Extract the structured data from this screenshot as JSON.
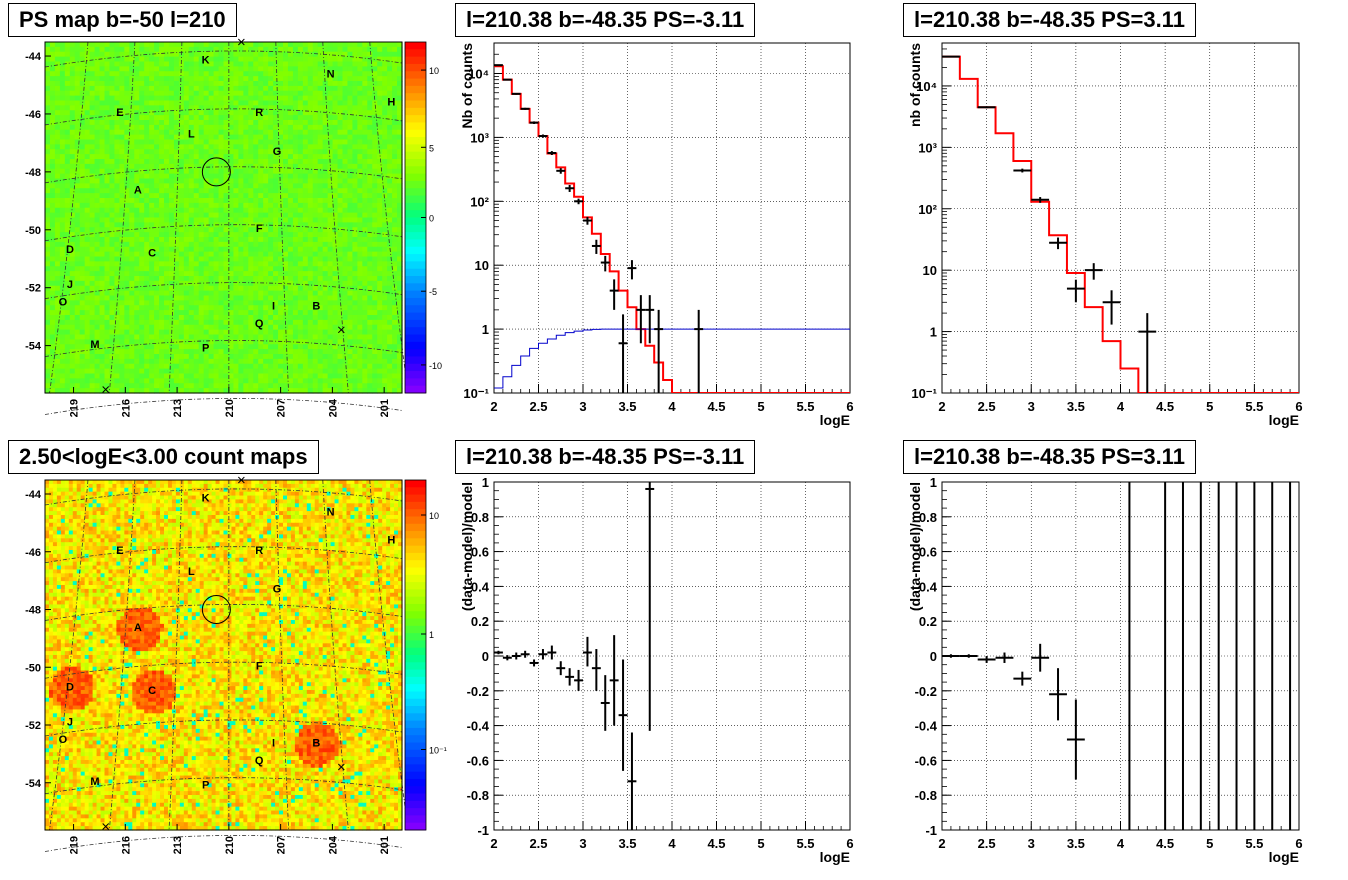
{
  "panels": {
    "map_top": {
      "title": "PS map b=-50 l=210",
      "y_ticks": [
        "-44",
        "-46",
        "-48",
        "-50",
        "-52",
        "-54"
      ],
      "x_ticks": [
        "219",
        "216",
        "213",
        "210",
        "207",
        "204",
        "201"
      ],
      "colorbar_ticks": [
        "10",
        "5",
        "0",
        "-5",
        "-10"
      ],
      "labels": [
        "K",
        "N",
        "H",
        "E",
        "R",
        "L",
        "G",
        "A",
        "F",
        "D",
        "C",
        "J",
        "O",
        "I",
        "B",
        "Q",
        "M",
        "P"
      ]
    },
    "map_bottom": {
      "title": "2.50<logE<3.00 count maps",
      "y_ticks": [
        "-44",
        "-46",
        "-48",
        "-50",
        "-52",
        "-54"
      ],
      "x_ticks": [
        "219",
        "216",
        "213",
        "210",
        "207",
        "204",
        "201"
      ],
      "colorbar_ticks": [
        "10",
        "1",
        "10⁻¹"
      ],
      "labels": [
        "K",
        "N",
        "H",
        "E",
        "R",
        "L",
        "G",
        "A",
        "F",
        "D",
        "C",
        "J",
        "O",
        "I",
        "B",
        "Q",
        "M",
        "P"
      ]
    },
    "spec_left": {
      "title": "l=210.38 b=-48.35 PS=-3.11"
    },
    "spec_right": {
      "title": "l=210.38 b=-48.35 PS=3.11"
    },
    "res_left": {
      "title": "l=210.38 b=-48.35 PS=-3.11"
    },
    "res_right": {
      "title": "l=210.38 b=-48.35 PS=3.11"
    }
  },
  "chart_data": [
    {
      "id": "spec_left",
      "type": "line",
      "xlabel": "logE",
      "ylabel": "Nb of counts",
      "xlim": [
        2,
        6
      ],
      "ylim": [
        0.1,
        30000
      ],
      "yscale": "log",
      "x_ticks": [
        "2",
        "2.5",
        "3",
        "3.5",
        "4",
        "4.5",
        "5",
        "5.5",
        "6"
      ],
      "y_ticks": [
        {
          "v": 0.1,
          "t": "10⁻¹"
        },
        {
          "v": 1,
          "t": "1"
        },
        {
          "v": 10,
          "t": "10"
        },
        {
          "v": 100,
          "t": "10²"
        },
        {
          "v": 1000,
          "t": "10³"
        },
        {
          "v": 10000,
          "t": "10⁴"
        }
      ],
      "grid": true,
      "series": [
        {
          "kind": "step",
          "color": "#ff0000",
          "edges": [
            2,
            2.1,
            2.2,
            2.3,
            2.4,
            2.5,
            2.6,
            2.7,
            2.8,
            2.9,
            3.0,
            3.1,
            3.2,
            3.3,
            3.4,
            3.5,
            3.6,
            3.7,
            3.8,
            3.9,
            4.0,
            6
          ],
          "values": [
            13000,
            8000,
            4800,
            2800,
            1700,
            1050,
            560,
            340,
            190,
            118,
            56,
            31,
            15,
            8,
            4,
            2.2,
            1.0,
            0.55,
            0.3,
            0.16,
            0.1
          ]
        },
        {
          "kind": "step",
          "color": "#0000cc",
          "edges": [
            2,
            2.1,
            2.2,
            2.3,
            2.4,
            2.5,
            2.6,
            2.7,
            2.8,
            2.9,
            3.0,
            3.1,
            3.2,
            3.3,
            3.4,
            6
          ],
          "values": [
            0.12,
            0.18,
            0.27,
            0.38,
            0.5,
            0.6,
            0.7,
            0.8,
            0.88,
            0.93,
            0.97,
            0.99,
            1.0,
            1.0,
            1.0
          ]
        },
        {
          "kind": "errors",
          "color": "#000000",
          "points": [
            {
              "x": 2.05,
              "y": 13500,
              "xe": 0.05,
              "lo": 13200,
              "hi": 13800
            },
            {
              "x": 2.15,
              "y": 8000,
              "xe": 0.05,
              "lo": 7800,
              "hi": 8200
            },
            {
              "x": 2.25,
              "y": 4800,
              "xe": 0.05,
              "lo": 4650,
              "hi": 4950
            },
            {
              "x": 2.35,
              "y": 2800,
              "xe": 0.05,
              "lo": 2700,
              "hi": 2900
            },
            {
              "x": 2.45,
              "y": 1700,
              "xe": 0.05,
              "lo": 1620,
              "hi": 1780
            },
            {
              "x": 2.55,
              "y": 1050,
              "xe": 0.05,
              "lo": 990,
              "hi": 1110
            },
            {
              "x": 2.65,
              "y": 570,
              "xe": 0.05,
              "lo": 530,
              "hi": 610
            },
            {
              "x": 2.75,
              "y": 300,
              "xe": 0.05,
              "lo": 270,
              "hi": 330
            },
            {
              "x": 2.85,
              "y": 160,
              "xe": 0.05,
              "lo": 140,
              "hi": 180
            },
            {
              "x": 2.95,
              "y": 100,
              "xe": 0.05,
              "lo": 90,
              "hi": 110
            },
            {
              "x": 3.05,
              "y": 50,
              "xe": 0.05,
              "lo": 43,
              "hi": 57
            },
            {
              "x": 3.15,
              "y": 20,
              "xe": 0.05,
              "lo": 15,
              "hi": 25
            },
            {
              "x": 3.25,
              "y": 11,
              "xe": 0.05,
              "lo": 8,
              "hi": 14
            },
            {
              "x": 3.35,
              "y": 4,
              "xe": 0.05,
              "lo": 2,
              "hi": 6
            },
            {
              "x": 3.45,
              "y": 0.6,
              "xe": 0.05,
              "lo": 0.1,
              "hi": 1.7
            },
            {
              "x": 3.55,
              "y": 9,
              "xe": 0.05,
              "lo": 6,
              "hi": 12
            },
            {
              "x": 3.65,
              "y": 2,
              "xe": 0.05,
              "lo": 0.6,
              "hi": 3.4
            },
            {
              "x": 3.75,
              "y": 2,
              "xe": 0.05,
              "lo": 0.6,
              "hi": 3.4
            },
            {
              "x": 3.85,
              "y": 1,
              "xe": 0.05,
              "lo": 0.1,
              "hi": 2
            },
            {
              "x": 4.3,
              "y": 1,
              "xe": 0.05,
              "lo": 0.1,
              "hi": 2
            }
          ]
        }
      ]
    },
    {
      "id": "spec_right",
      "type": "line",
      "xlabel": "logE",
      "ylabel": "nb of counts",
      "xlim": [
        2,
        6
      ],
      "ylim": [
        0.1,
        50000
      ],
      "yscale": "log",
      "x_ticks": [
        "2",
        "2.5",
        "3",
        "3.5",
        "4",
        "4.5",
        "5",
        "5.5",
        "6"
      ],
      "y_ticks": [
        {
          "v": 0.1,
          "t": "10⁻¹"
        },
        {
          "v": 1,
          "t": "1"
        },
        {
          "v": 10,
          "t": "10"
        },
        {
          "v": 100,
          "t": "10²"
        },
        {
          "v": 1000,
          "t": "10³"
        },
        {
          "v": 10000,
          "t": "10⁴"
        }
      ],
      "grid": true,
      "series": [
        {
          "kind": "step",
          "color": "#ff0000",
          "edges": [
            2,
            2.2,
            2.4,
            2.6,
            2.8,
            3.0,
            3.2,
            3.4,
            3.6,
            3.8,
            4.0,
            4.2,
            6
          ],
          "values": [
            30000,
            13000,
            4500,
            1700,
            600,
            130,
            37,
            9,
            2.5,
            0.7,
            0.25,
            0.1
          ]
        },
        {
          "kind": "errors",
          "color": "#000000",
          "points": [
            {
              "x": 2.1,
              "y": 30000,
              "xe": 0.1,
              "lo": 29500,
              "hi": 30500
            },
            {
              "x": 2.5,
              "y": 4500,
              "xe": 0.1,
              "lo": 4350,
              "hi": 4650
            },
            {
              "x": 2.9,
              "y": 420,
              "xe": 0.1,
              "lo": 390,
              "hi": 450
            },
            {
              "x": 3.1,
              "y": 140,
              "xe": 0.1,
              "lo": 125,
              "hi": 155
            },
            {
              "x": 3.3,
              "y": 28,
              "xe": 0.1,
              "lo": 22,
              "hi": 34
            },
            {
              "x": 3.5,
              "y": 5,
              "xe": 0.1,
              "lo": 3,
              "hi": 7
            },
            {
              "x": 3.7,
              "y": 10,
              "xe": 0.1,
              "lo": 7,
              "hi": 13
            },
            {
              "x": 3.9,
              "y": 3,
              "xe": 0.1,
              "lo": 1.3,
              "hi": 4.7
            },
            {
              "x": 4.3,
              "y": 1,
              "xe": 0.1,
              "lo": 0.1,
              "hi": 2
            }
          ]
        }
      ]
    },
    {
      "id": "res_left",
      "type": "scatter",
      "xlabel": "logE",
      "ylabel": "(data-model)/model",
      "xlim": [
        2,
        6
      ],
      "ylim": [
        -1,
        1
      ],
      "x_ticks": [
        "2",
        "2.5",
        "3",
        "3.5",
        "4",
        "4.5",
        "5",
        "5.5",
        "6"
      ],
      "y_ticks": [
        "-1",
        "-0.8",
        "-0.6",
        "-0.4",
        "-0.2",
        "0",
        "0.2",
        "0.4",
        "0.6",
        "0.8",
        "1"
      ],
      "grid": true,
      "series": [
        {
          "kind": "errors",
          "color": "#000000",
          "points": [
            {
              "x": 2.05,
              "y": 0.02,
              "xe": 0.05,
              "lo": 0.01,
              "hi": 0.03
            },
            {
              "x": 2.15,
              "y": -0.01,
              "xe": 0.05,
              "lo": -0.025,
              "hi": 0.005
            },
            {
              "x": 2.25,
              "y": 0.0,
              "xe": 0.05,
              "lo": -0.02,
              "hi": 0.02
            },
            {
              "x": 2.35,
              "y": 0.01,
              "xe": 0.05,
              "lo": -0.01,
              "hi": 0.03
            },
            {
              "x": 2.45,
              "y": -0.04,
              "xe": 0.05,
              "lo": -0.06,
              "hi": -0.02
            },
            {
              "x": 2.55,
              "y": 0.01,
              "xe": 0.05,
              "lo": -0.02,
              "hi": 0.04
            },
            {
              "x": 2.65,
              "y": 0.02,
              "xe": 0.05,
              "lo": -0.02,
              "hi": 0.06
            },
            {
              "x": 2.75,
              "y": -0.07,
              "xe": 0.05,
              "lo": -0.11,
              "hi": -0.03
            },
            {
              "x": 2.85,
              "y": -0.12,
              "xe": 0.05,
              "lo": -0.17,
              "hi": -0.07
            },
            {
              "x": 2.95,
              "y": -0.14,
              "xe": 0.05,
              "lo": -0.2,
              "hi": -0.08
            },
            {
              "x": 3.05,
              "y": 0.02,
              "xe": 0.05,
              "lo": -0.06,
              "hi": 0.11
            },
            {
              "x": 3.15,
              "y": -0.07,
              "xe": 0.05,
              "lo": -0.2,
              "hi": 0.04
            },
            {
              "x": 3.25,
              "y": -0.27,
              "xe": 0.05,
              "lo": -0.43,
              "hi": -0.11
            },
            {
              "x": 3.35,
              "y": -0.14,
              "xe": 0.05,
              "lo": -0.4,
              "hi": 0.12
            },
            {
              "x": 3.45,
              "y": -0.34,
              "xe": 0.05,
              "lo": -0.66,
              "hi": -0.02
            },
            {
              "x": 3.55,
              "y": -0.72,
              "xe": 0.05,
              "lo": -1.0,
              "hi": -0.44
            },
            {
              "x": 3.75,
              "y": 0.96,
              "xe": 0.05,
              "lo": -0.43,
              "hi": 1.0
            }
          ]
        }
      ]
    },
    {
      "id": "res_right",
      "type": "scatter",
      "xlabel": "logE",
      "ylabel": "(data-model)/model",
      "xlim": [
        2,
        6
      ],
      "ylim": [
        -1,
        1
      ],
      "x_ticks": [
        "2",
        "2.5",
        "3",
        "3.5",
        "4",
        "4.5",
        "5",
        "5.5",
        "6"
      ],
      "y_ticks": [
        "-1",
        "-0.8",
        "-0.6",
        "-0.4",
        "-0.2",
        "0",
        "0.2",
        "0.4",
        "0.6",
        "0.8",
        "1"
      ],
      "grid": true,
      "series": [
        {
          "kind": "errors",
          "color": "#000000",
          "points": [
            {
              "x": 2.1,
              "y": 0.0,
              "xe": 0.1,
              "lo": -0.01,
              "hi": 0.01
            },
            {
              "x": 2.3,
              "y": 0.0,
              "xe": 0.1,
              "lo": -0.01,
              "hi": 0.01
            },
            {
              "x": 2.5,
              "y": -0.02,
              "xe": 0.1,
              "lo": -0.04,
              "hi": 0.0
            },
            {
              "x": 2.7,
              "y": -0.01,
              "xe": 0.1,
              "lo": -0.04,
              "hi": 0.02
            },
            {
              "x": 2.9,
              "y": -0.13,
              "xe": 0.1,
              "lo": -0.17,
              "hi": -0.09
            },
            {
              "x": 3.1,
              "y": -0.01,
              "xe": 0.1,
              "lo": -0.09,
              "hi": 0.07
            },
            {
              "x": 3.3,
              "y": -0.22,
              "xe": 0.1,
              "lo": -0.37,
              "hi": -0.07
            },
            {
              "x": 3.5,
              "y": -0.48,
              "xe": 0.1,
              "lo": -0.71,
              "hi": -0.25
            }
          ]
        },
        {
          "kind": "vlines",
          "color": "#000000",
          "x": [
            4.1,
            4.5,
            4.7,
            4.9,
            5.1,
            5.3,
            5.5,
            5.7,
            5.9
          ],
          "lo": -1,
          "hi": 1
        }
      ]
    }
  ]
}
